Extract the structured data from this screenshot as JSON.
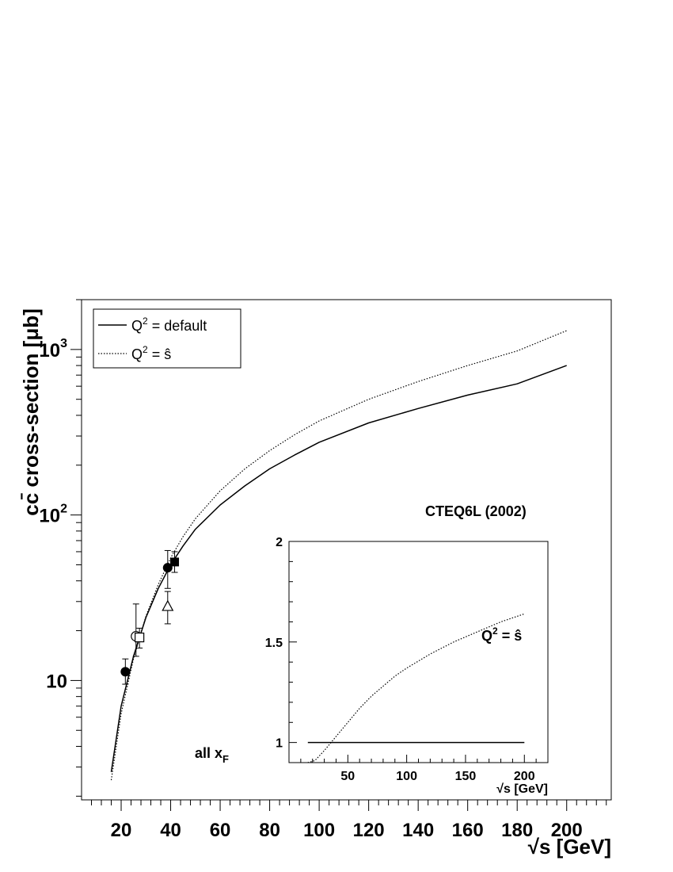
{
  "chart_data": [
    {
      "type": "line",
      "scale": "log-y",
      "xlabel": "√s [GeV]",
      "ylabel": "cc̄ cross-section [μb]",
      "xlim": [
        4,
        218
      ],
      "ylim": [
        1.9,
        2000
      ],
      "x_ticks": [
        "20",
        "40",
        "60",
        "80",
        "100",
        "120",
        "140",
        "160",
        "180",
        "200"
      ],
      "y_ticks": [
        "10",
        "10²",
        "10³"
      ],
      "legend": {
        "placement": "top-left",
        "entries": [
          {
            "label_main": "Q",
            "label_sup": "2",
            "label_rest": " = default",
            "style": "solid"
          },
          {
            "label_main": "Q",
            "label_sup": "2",
            "label_rest": " = ŝ",
            "style": "dotted"
          }
        ]
      },
      "annotations": {
        "pdf": "CTEQ6L (2002)",
        "xf_main": "all x",
        "xf_sub": "F"
      },
      "series": [
        {
          "style": "solid",
          "points": [
            [
              16,
              2.8
            ],
            [
              20,
              7
            ],
            [
              25,
              14
            ],
            [
              30,
              24
            ],
            [
              35,
              36
            ],
            [
              40,
              50
            ],
            [
              45,
              65
            ],
            [
              50,
              82
            ],
            [
              60,
              115
            ],
            [
              70,
              150
            ],
            [
              80,
              190
            ],
            [
              90,
              230
            ],
            [
              100,
              275
            ],
            [
              120,
              360
            ],
            [
              140,
              440
            ],
            [
              160,
              530
            ],
            [
              180,
              620
            ],
            [
              200,
              800
            ]
          ]
        },
        {
          "style": "dotted",
          "points": [
            [
              16,
              2.5
            ],
            [
              20,
              6.3
            ],
            [
              25,
              13.5
            ],
            [
              30,
              24.5
            ],
            [
              35,
              38
            ],
            [
              40,
              55
            ],
            [
              45,
              74
            ],
            [
              50,
              95
            ],
            [
              60,
              140
            ],
            [
              70,
              190
            ],
            [
              80,
              245
            ],
            [
              90,
              305
            ],
            [
              100,
              370
            ],
            [
              120,
              500
            ],
            [
              140,
              640
            ],
            [
              160,
              800
            ],
            [
              180,
              980
            ],
            [
              200,
              1300
            ]
          ]
        }
      ],
      "data_points": [
        {
          "x": 21.7,
          "y": 11.3,
          "err_lo": 1.8,
          "err_hi": 2.2,
          "marker": "filled-circle"
        },
        {
          "x": 26.0,
          "y": 18.5,
          "err_lo": 4.5,
          "err_hi": 10.5,
          "marker": "open-circle"
        },
        {
          "x": 27.4,
          "y": 18.2,
          "err_lo": 2.5,
          "err_hi": 2.5,
          "marker": "open-square"
        },
        {
          "x": 38.8,
          "y": 28.0,
          "err_lo": 6.0,
          "err_hi": 6.5,
          "marker": "open-triangle"
        },
        {
          "x": 38.8,
          "y": 48.0,
          "err_lo": 12.0,
          "err_hi": 13.0,
          "marker": "filled-circle"
        },
        {
          "x": 41.6,
          "y": 52.0,
          "err_lo": 7.0,
          "err_hi": 8.0,
          "marker": "filled-square"
        }
      ]
    },
    {
      "type": "line",
      "title": "Q² = ŝ",
      "title_main": "Q",
      "title_sup": "2",
      "title_rest": " = ŝ",
      "xlabel": "√s [GeV]",
      "xlim": [
        0,
        220
      ],
      "ylim": [
        0.9,
        2.0
      ],
      "x_ticks": [
        "50",
        "100",
        "150",
        "200"
      ],
      "y_ticks": [
        "1",
        "1.5",
        "2"
      ],
      "series": [
        {
          "style": "solid",
          "points": [
            [
              16,
              1.0
            ],
            [
              200,
              1.0
            ]
          ]
        },
        {
          "style": "dotted",
          "points": [
            [
              16,
              0.9
            ],
            [
              22,
              0.91
            ],
            [
              30,
              0.96
            ],
            [
              40,
              1.03
            ],
            [
              50,
              1.1
            ],
            [
              60,
              1.17
            ],
            [
              70,
              1.23
            ],
            [
              80,
              1.28
            ],
            [
              90,
              1.33
            ],
            [
              100,
              1.37
            ],
            [
              120,
              1.44
            ],
            [
              140,
              1.5
            ],
            [
              160,
              1.55
            ],
            [
              180,
              1.6
            ],
            [
              200,
              1.64
            ]
          ]
        }
      ]
    }
  ]
}
